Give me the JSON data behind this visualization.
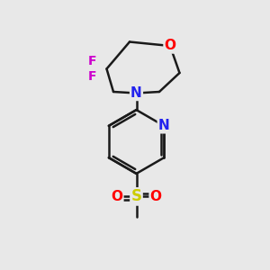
{
  "bg_color": "#e8e8e8",
  "bond_color": "#1a1a1a",
  "bond_width": 1.8,
  "atom_colors": {
    "O": "#ff0000",
    "N": "#2222ee",
    "F": "#cc00cc",
    "S": "#cccc00",
    "C": "#1a1a1a"
  },
  "font_size_atom": 11,
  "font_size_F": 10,
  "font_size_S": 12,
  "font_size_O": 11
}
